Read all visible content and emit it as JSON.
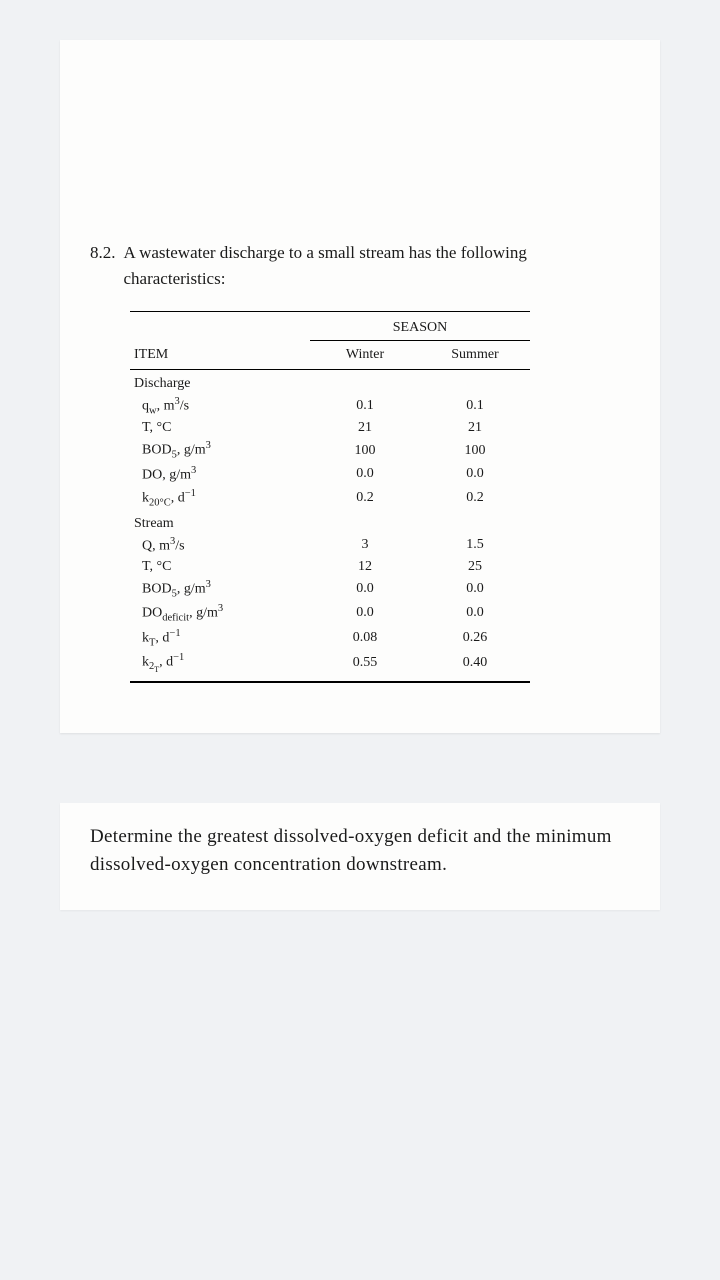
{
  "problem": {
    "number": "8.2.",
    "intro": "A wastewater discharge to a small stream has the following characteristics:"
  },
  "table": {
    "season_label": "SEASON",
    "item_label": "ITEM",
    "col1": "Winter",
    "col2": "Summer",
    "sections": {
      "discharge": {
        "title": "Discharge",
        "rows": [
          {
            "label_html": "q<sub>w</sub>, m<sup>3</sup>/s",
            "winter": "0.1",
            "summer": "0.1"
          },
          {
            "label_html": "T, °C",
            "winter": "21",
            "summer": "21"
          },
          {
            "label_html": "BOD<sub>5</sub>, g/m<sup>3</sup>",
            "winter": "100",
            "summer": "100"
          },
          {
            "label_html": "DO, g/m<sup>3</sup>",
            "winter": "0.0",
            "summer": "0.0"
          },
          {
            "label_html": "k<sub>20°C</sub>, d<sup>−1</sup>",
            "winter": "0.2",
            "summer": "0.2"
          }
        ]
      },
      "stream": {
        "title": "Stream",
        "rows": [
          {
            "label_html": "Q, m<sup>3</sup>/s",
            "winter": "3",
            "summer": "1.5"
          },
          {
            "label_html": "T, °C",
            "winter": "12",
            "summer": "25"
          },
          {
            "label_html": "BOD<sub>5</sub>, g/m<sup>3</sup>",
            "winter": "0.0",
            "summer": "0.0"
          },
          {
            "label_html": "DO<sub>deficit</sub>, g/m<sup>3</sup>",
            "winter": "0.0",
            "summer": "0.0"
          },
          {
            "label_html": "k<sub>T</sub>, d<sup>−1</sup>",
            "winter": "0.08",
            "summer": "0.26"
          },
          {
            "label_html": "k<sub>2<sub>T</sub></sub>, d<sup>−1</sup>",
            "winter": "0.55",
            "summer": "0.40"
          }
        ]
      }
    }
  },
  "question": "Determine the greatest dissolved-oxygen deficit and the minimum dissolved-oxygen concentration downstream.",
  "styling": {
    "background_color": "#f0f2f4",
    "page_color": "#fdfdfc",
    "text_color": "#1a1a1a",
    "font_family": "Times New Roman",
    "problem_fontsize": 17,
    "table_fontsize": 14,
    "question_fontsize": 19
  }
}
